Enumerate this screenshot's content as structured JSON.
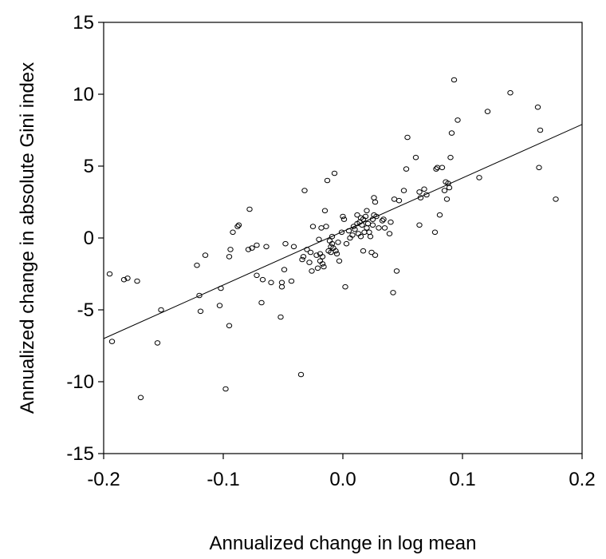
{
  "chart_data": {
    "type": "scatter",
    "title": "",
    "xlabel": "Annualized change in log mean",
    "ylabel": "Annualized change in absolute Gini index",
    "xlim": [
      -0.2,
      0.2
    ],
    "ylim": [
      -15,
      15
    ],
    "x_ticks": [
      -0.2,
      -0.1,
      0.0,
      0.1,
      0.2
    ],
    "x_tick_labels": [
      "-0.2",
      "-0.1",
      "0.0",
      "0.1",
      "0.2"
    ],
    "y_ticks": [
      -15,
      -10,
      -5,
      0,
      5,
      10,
      15
    ],
    "y_tick_labels": [
      "-15",
      "-10",
      "-5",
      "0",
      "5",
      "10",
      "15"
    ],
    "grid": false,
    "legend": "none",
    "colors": {
      "points": "#000000",
      "line": "#000000"
    },
    "fit_line": {
      "x": [
        -0.2,
        0.2
      ],
      "y": [
        -7.0,
        7.9
      ]
    },
    "points": [
      [
        -0.195,
        -2.5
      ],
      [
        -0.193,
        -7.2
      ],
      [
        -0.183,
        -2.9
      ],
      [
        -0.18,
        -2.8
      ],
      [
        -0.172,
        -3.0
      ],
      [
        -0.169,
        -11.1
      ],
      [
        -0.155,
        -7.3
      ],
      [
        -0.152,
        -5.0
      ],
      [
        -0.122,
        -1.9
      ],
      [
        -0.12,
        -4.0
      ],
      [
        -0.119,
        -5.1
      ],
      [
        -0.115,
        -1.2
      ],
      [
        -0.102,
        -3.5
      ],
      [
        -0.103,
        -4.7
      ],
      [
        -0.098,
        -10.5
      ],
      [
        -0.095,
        -6.1
      ],
      [
        -0.095,
        -1.3
      ],
      [
        -0.094,
        -0.8
      ],
      [
        -0.092,
        0.4
      ],
      [
        -0.088,
        0.8
      ],
      [
        -0.087,
        0.9
      ],
      [
        -0.078,
        2.0
      ],
      [
        -0.079,
        -0.8
      ],
      [
        -0.076,
        -0.7
      ],
      [
        -0.072,
        -2.6
      ],
      [
        -0.072,
        -0.5
      ],
      [
        -0.068,
        -4.5
      ],
      [
        -0.067,
        -2.9
      ],
      [
        -0.064,
        -0.6
      ],
      [
        -0.06,
        -3.1
      ],
      [
        -0.052,
        -5.5
      ],
      [
        -0.051,
        -3.1
      ],
      [
        -0.051,
        -3.4
      ],
      [
        -0.049,
        -2.2
      ],
      [
        -0.048,
        -0.4
      ],
      [
        -0.043,
        -3.0
      ],
      [
        -0.041,
        -0.6
      ],
      [
        -0.035,
        -9.5
      ],
      [
        -0.034,
        -1.5
      ],
      [
        -0.033,
        -1.3
      ],
      [
        -0.032,
        3.3
      ],
      [
        -0.03,
        -0.8
      ],
      [
        -0.028,
        -1.7
      ],
      [
        -0.027,
        -1.0
      ],
      [
        -0.026,
        -2.3
      ],
      [
        -0.025,
        0.8
      ],
      [
        -0.022,
        -1.2
      ],
      [
        -0.021,
        -2.1
      ],
      [
        -0.02,
        -0.1
      ],
      [
        -0.019,
        -1.6
      ],
      [
        -0.019,
        -1.1
      ],
      [
        -0.018,
        0.7
      ],
      [
        -0.017,
        -1.3
      ],
      [
        -0.017,
        -1.8
      ],
      [
        -0.016,
        -2.0
      ],
      [
        -0.015,
        1.9
      ],
      [
        -0.014,
        0.8
      ],
      [
        -0.013,
        4.0
      ],
      [
        -0.012,
        -0.9
      ],
      [
        -0.011,
        -0.2
      ],
      [
        -0.01,
        -1.0
      ],
      [
        -0.01,
        -0.6
      ],
      [
        -0.009,
        0.1
      ],
      [
        -0.009,
        -0.4
      ],
      [
        -0.008,
        -0.7
      ],
      [
        -0.007,
        4.5
      ],
      [
        -0.006,
        -0.9
      ],
      [
        -0.005,
        -1.1
      ],
      [
        -0.004,
        -0.3
      ],
      [
        -0.003,
        -1.6
      ],
      [
        -0.001,
        0.4
      ],
      [
        0.0,
        1.5
      ],
      [
        0.001,
        1.3
      ],
      [
        0.002,
        -3.4
      ],
      [
        0.003,
        -0.4
      ],
      [
        0.005,
        0.5
      ],
      [
        0.006,
        0.0
      ],
      [
        0.008,
        0.2
      ],
      [
        0.009,
        0.8
      ],
      [
        0.01,
        0.6
      ],
      [
        0.012,
        1.0
      ],
      [
        0.012,
        1.6
      ],
      [
        0.013,
        0.3
      ],
      [
        0.014,
        1.1
      ],
      [
        0.015,
        1.4
      ],
      [
        0.015,
        0.1
      ],
      [
        0.016,
        0.9
      ],
      [
        0.017,
        1.3
      ],
      [
        0.017,
        -0.9
      ],
      [
        0.018,
        0.4
      ],
      [
        0.019,
        1.5
      ],
      [
        0.02,
        1.9
      ],
      [
        0.02,
        0.7
      ],
      [
        0.021,
        1.0
      ],
      [
        0.022,
        0.4
      ],
      [
        0.023,
        0.1
      ],
      [
        0.024,
        -1.0
      ],
      [
        0.025,
        1.3
      ],
      [
        0.025,
        0.9
      ],
      [
        0.026,
        2.8
      ],
      [
        0.026,
        1.6
      ],
      [
        0.027,
        2.5
      ],
      [
        0.027,
        -1.2
      ],
      [
        0.028,
        1.5
      ],
      [
        0.03,
        0.7
      ],
      [
        0.033,
        1.2
      ],
      [
        0.034,
        1.3
      ],
      [
        0.035,
        0.7
      ],
      [
        0.039,
        0.3
      ],
      [
        0.04,
        1.1
      ],
      [
        0.042,
        -3.8
      ],
      [
        0.043,
        2.7
      ],
      [
        0.045,
        -2.3
      ],
      [
        0.047,
        2.6
      ],
      [
        0.051,
        3.3
      ],
      [
        0.053,
        4.8
      ],
      [
        0.054,
        7.0
      ],
      [
        0.061,
        5.6
      ],
      [
        0.064,
        0.9
      ],
      [
        0.064,
        3.2
      ],
      [
        0.065,
        2.8
      ],
      [
        0.068,
        3.4
      ],
      [
        0.07,
        3.0
      ],
      [
        0.077,
        0.4
      ],
      [
        0.078,
        4.8
      ],
      [
        0.079,
        4.9
      ],
      [
        0.081,
        1.6
      ],
      [
        0.083,
        4.9
      ],
      [
        0.085,
        3.3
      ],
      [
        0.086,
        3.9
      ],
      [
        0.087,
        2.7
      ],
      [
        0.088,
        3.8
      ],
      [
        0.089,
        3.5
      ],
      [
        0.09,
        5.6
      ],
      [
        0.091,
        7.3
      ],
      [
        0.093,
        11.0
      ],
      [
        0.096,
        8.2
      ],
      [
        0.114,
        4.2
      ],
      [
        0.121,
        8.8
      ],
      [
        0.14,
        10.1
      ],
      [
        0.163,
        9.1
      ],
      [
        0.164,
        4.9
      ],
      [
        0.165,
        7.5
      ],
      [
        0.178,
        2.7
      ]
    ]
  }
}
